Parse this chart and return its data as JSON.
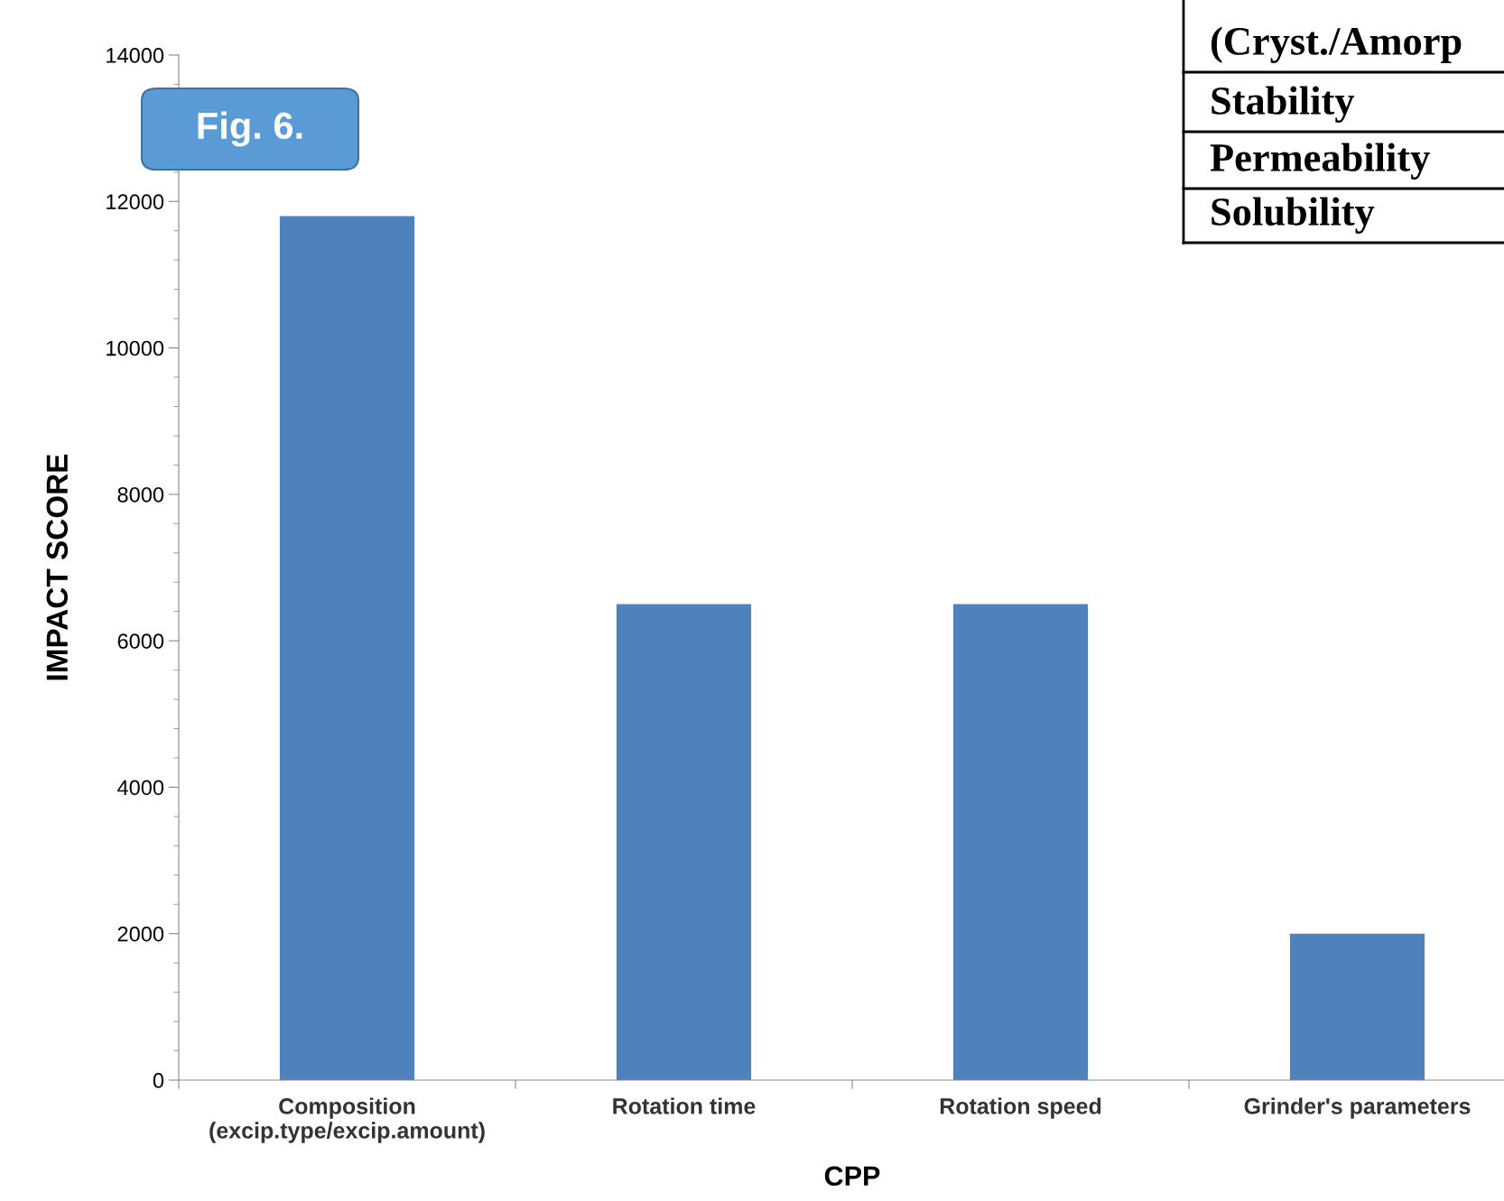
{
  "chart_data": {
    "type": "bar",
    "xlabel": "CPP",
    "ylabel": "IMPACT SCORE",
    "categories": [
      "Composition\n(excip.type/excip.amount)",
      "Rotation time",
      "Rotation speed",
      "Grinder's parameters"
    ],
    "values": [
      11800,
      6500,
      6500,
      2000
    ],
    "color": "#4f81bd",
    "ylim": [
      0,
      14000
    ],
    "yticks": [
      0,
      2000,
      4000,
      6000,
      8000,
      10000,
      12000,
      14000
    ],
    "grid": false,
    "annotations": [
      "Fig. 6.",
      "(Cryst./Amorp",
      "Stability",
      "Permeability",
      "Solubility"
    ]
  }
}
